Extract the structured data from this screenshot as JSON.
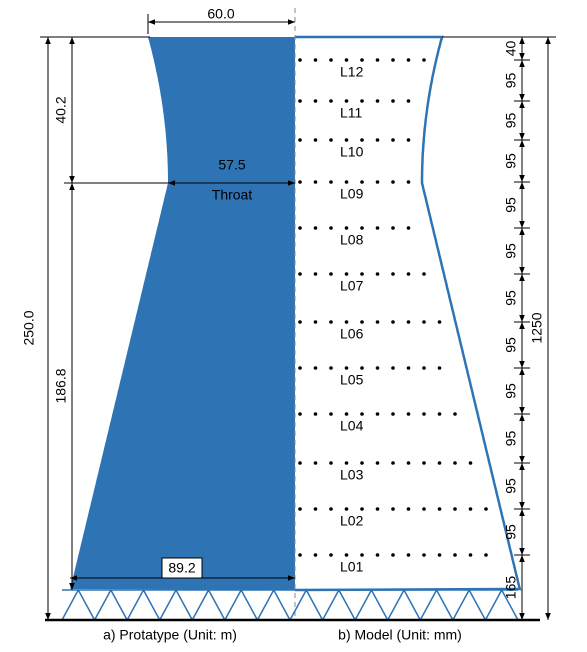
{
  "prototype": {
    "top_width": "60.0",
    "throat_width": "57.5",
    "throat_label": "Throat",
    "base_width": "89.2",
    "upper_height": "40.2",
    "lower_height": "186.8",
    "total_height": "250.0",
    "caption": "a) Protatype (Unit: m)"
  },
  "model": {
    "levels": [
      "L12",
      "L11",
      "L10",
      "L09",
      "L08",
      "L07",
      "L06",
      "L05",
      "L04",
      "L03",
      "L02",
      "L01"
    ],
    "segments": [
      "40",
      "95",
      "95",
      "95",
      "95",
      "95",
      "95",
      "95",
      "95",
      "95",
      "95",
      "95",
      "165"
    ],
    "total_height": "1250",
    "caption": "b) Model (Unit: mm)"
  }
}
